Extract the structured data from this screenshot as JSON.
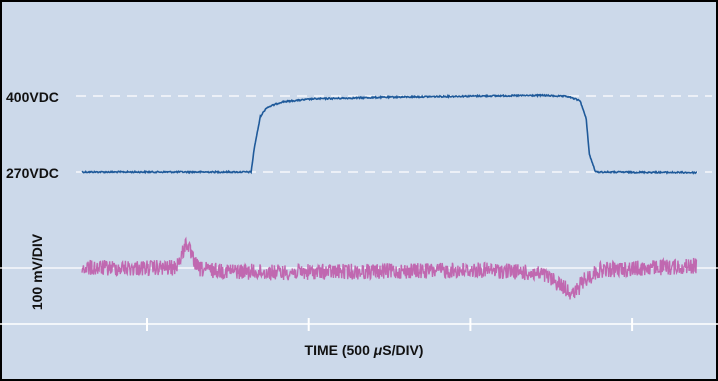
{
  "chart_data": {
    "type": "line",
    "title": "",
    "xlabel_prefix": "TIME (500 ",
    "xlabel_mu": "μ",
    "xlabel_suffix": "S/DIV)",
    "x_unit": "µs",
    "x_per_div": 500,
    "ylabel": "100 mV/DIV",
    "annotations": [
      {
        "text": "400VDC",
        "y": 400
      },
      {
        "text": "270VDC",
        "y": 270
      }
    ],
    "grid": true,
    "xlim": [
      0,
      2000
    ],
    "series": [
      {
        "unit": "VDC",
        "x": [
          0,
          550,
          560,
          580,
          600,
          650,
          750,
          1000,
          1300,
          1500,
          1580,
          1620,
          1640,
          1650,
          1670,
          2000
        ],
        "y": [
          270,
          270,
          310,
          365,
          380,
          390,
          395,
          398,
          400,
          401,
          399,
          392,
          360,
          300,
          270,
          269
        ]
      },
      {
        "unit": "mV",
        "x": [
          0,
          300,
          320,
          340,
          360,
          380,
          420,
          600,
          1000,
          1300,
          1400,
          1500,
          1560,
          1600,
          1630,
          1680,
          2000
        ],
        "y": [
          0,
          0,
          40,
          120,
          40,
          -5,
          -10,
          -20,
          -15,
          -10,
          -15,
          -30,
          -80,
          -120,
          -60,
          -10,
          10
        ]
      }
    ]
  },
  "colors": {
    "background": "#ccd9ea",
    "border": "#000000",
    "voltage_trace": "#1f5a9a",
    "ripple_trace": "#c068b0",
    "gridline": "#ffffff",
    "axis_text": "#111111"
  }
}
